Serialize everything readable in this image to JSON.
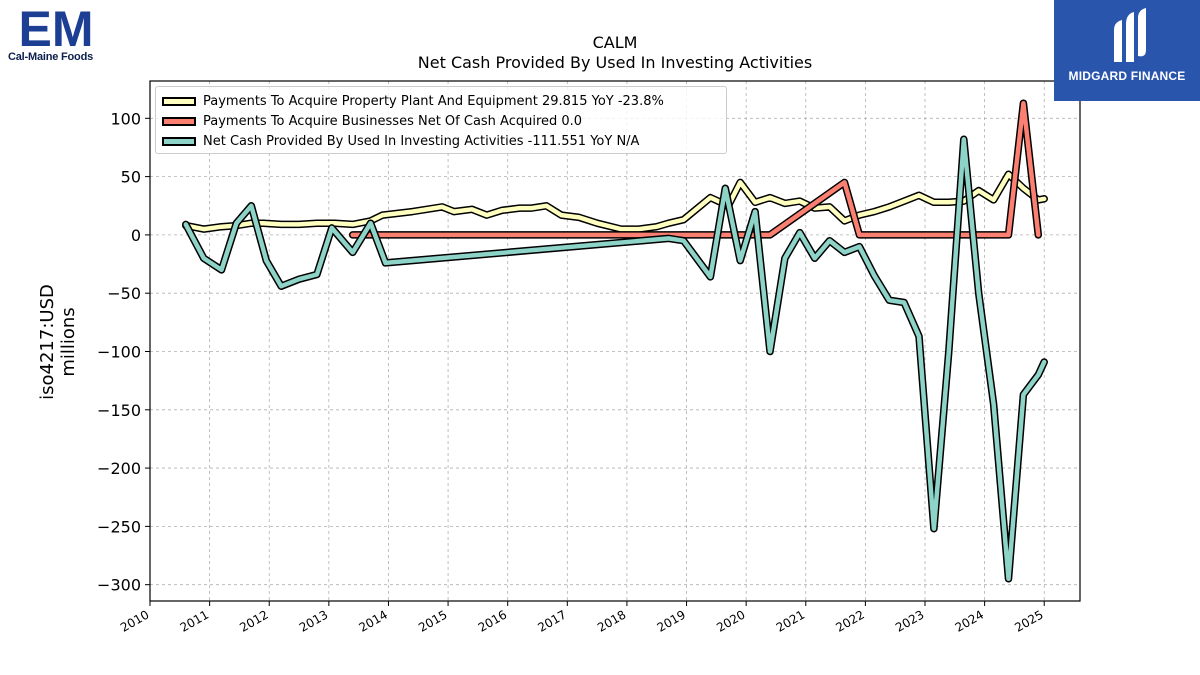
{
  "header": {
    "company_logo_caption": "Cal-Maine Foods",
    "company_logo_letters": "EM",
    "brand_logo_text": "MIDGARD FINANCE"
  },
  "chart_data": {
    "type": "line",
    "title": "CALM",
    "subtitle": "Net Cash Provided By Used In Investing Activities",
    "ylabel": "iso4217:USD",
    "ylabel_unit": "millions",
    "xlabel": "",
    "xlim": [
      2010.0,
      2025.6
    ],
    "ylim": [
      -314,
      132
    ],
    "x_ticks": [
      2010,
      2011,
      2012,
      2013,
      2014,
      2015,
      2016,
      2017,
      2018,
      2019,
      2020,
      2021,
      2022,
      2023,
      2024,
      2025
    ],
    "y_ticks": [
      100,
      50,
      0,
      -50,
      -100,
      -150,
      -200,
      -250,
      -300
    ],
    "grid": true,
    "legend_position": "top-left",
    "series": [
      {
        "name": "Payments To Acquire Property Plant And Equipment  29.815 YoY -23.8%",
        "color": "#ffffbf",
        "points": [
          [
            2010.6,
            8
          ],
          [
            2010.9,
            5
          ],
          [
            2011.2,
            7
          ],
          [
            2011.45,
            8
          ],
          [
            2011.7,
            10
          ],
          [
            2011.9,
            10
          ],
          [
            2012.2,
            9
          ],
          [
            2012.5,
            9
          ],
          [
            2012.8,
            10
          ],
          [
            2013.1,
            10
          ],
          [
            2013.4,
            9
          ],
          [
            2013.7,
            12
          ],
          [
            2013.9,
            17
          ],
          [
            2014.4,
            20
          ],
          [
            2014.9,
            24
          ],
          [
            2015.1,
            20
          ],
          [
            2015.4,
            22
          ],
          [
            2015.65,
            17
          ],
          [
            2015.9,
            21
          ],
          [
            2016.2,
            23
          ],
          [
            2016.4,
            23
          ],
          [
            2016.65,
            25
          ],
          [
            2016.9,
            17
          ],
          [
            2017.2,
            15
          ],
          [
            2017.5,
            10
          ],
          [
            2017.9,
            5
          ],
          [
            2018.2,
            5
          ],
          [
            2018.5,
            7
          ],
          [
            2018.7,
            10
          ],
          [
            2018.95,
            13
          ],
          [
            2019.4,
            32
          ],
          [
            2019.7,
            25
          ],
          [
            2019.9,
            45
          ],
          [
            2020.15,
            28
          ],
          [
            2020.4,
            32
          ],
          [
            2020.65,
            27
          ],
          [
            2020.9,
            29
          ],
          [
            2021.15,
            23
          ],
          [
            2021.4,
            24
          ],
          [
            2021.65,
            12
          ],
          [
            2021.9,
            17
          ],
          [
            2022.15,
            20
          ],
          [
            2022.4,
            24
          ],
          [
            2022.65,
            29
          ],
          [
            2022.9,
            34
          ],
          [
            2023.15,
            28
          ],
          [
            2023.4,
            28
          ],
          [
            2023.65,
            29
          ],
          [
            2023.9,
            38
          ],
          [
            2024.15,
            30
          ],
          [
            2024.4,
            52
          ],
          [
            2024.65,
            40
          ],
          [
            2024.9,
            30
          ],
          [
            2025.0,
            31
          ]
        ]
      },
      {
        "name": "Payments To Acquire Businesses Net Of Cash Acquired  0.0",
        "color": "#fb8072",
        "points": [
          [
            2013.4,
            0
          ],
          [
            2020.4,
            0
          ],
          [
            2021.65,
            45
          ],
          [
            2021.9,
            0
          ],
          [
            2024.4,
            0
          ],
          [
            2024.65,
            113
          ],
          [
            2024.9,
            0
          ]
        ]
      },
      {
        "name": "Net Cash Provided By Used In Investing Activities  -111.551 YoY N/A",
        "color": "#8dd3c7",
        "points": [
          [
            2010.6,
            9
          ],
          [
            2010.9,
            -20
          ],
          [
            2011.2,
            -30
          ],
          [
            2011.45,
            10
          ],
          [
            2011.7,
            25
          ],
          [
            2011.95,
            -22
          ],
          [
            2012.2,
            -44
          ],
          [
            2012.5,
            -38
          ],
          [
            2012.8,
            -34
          ],
          [
            2013.05,
            6
          ],
          [
            2013.4,
            -15
          ],
          [
            2013.7,
            10
          ],
          [
            2013.95,
            -24
          ],
          [
            2018.7,
            -3
          ],
          [
            2018.95,
            -5
          ],
          [
            2019.4,
            -36
          ],
          [
            2019.65,
            40
          ],
          [
            2019.9,
            -22
          ],
          [
            2020.15,
            20
          ],
          [
            2020.4,
            -100
          ],
          [
            2020.65,
            -20
          ],
          [
            2020.9,
            2
          ],
          [
            2021.15,
            -20
          ],
          [
            2021.4,
            -5
          ],
          [
            2021.65,
            -15
          ],
          [
            2021.9,
            -10
          ],
          [
            2022.15,
            -35
          ],
          [
            2022.4,
            -56
          ],
          [
            2022.65,
            -58
          ],
          [
            2022.9,
            -87
          ],
          [
            2023.15,
            -252
          ],
          [
            2023.4,
            -100
          ],
          [
            2023.65,
            82
          ],
          [
            2023.9,
            -50
          ],
          [
            2024.15,
            -145
          ],
          [
            2024.4,
            -295
          ],
          [
            2024.65,
            -137
          ],
          [
            2024.9,
            -120
          ],
          [
            2025.0,
            -109
          ]
        ]
      }
    ]
  }
}
